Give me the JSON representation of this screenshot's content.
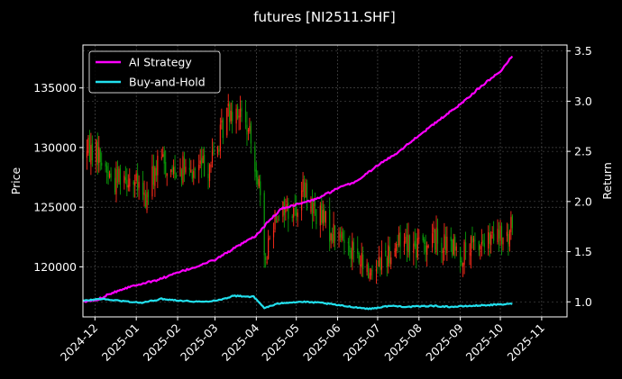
{
  "chart_data": {
    "type": "line",
    "title": "futures [NI2511.SHF]",
    "ylabel": "Price",
    "y2label": "Return",
    "x_tick_labels": [
      "2024-12",
      "2025-01",
      "2025-02",
      "2025-03",
      "2025-04",
      "2025-05",
      "2025-06",
      "2025-07",
      "2025-08",
      "2025-09",
      "2025-10",
      "2025-11"
    ],
    "ylim": [
      115800,
      138600
    ],
    "y2lim": [
      0.85,
      3.56
    ],
    "yticks": [
      120000,
      125000,
      130000,
      135000
    ],
    "y2ticks": [
      1.0,
      1.5,
      2.0,
      2.5,
      3.0,
      3.5
    ],
    "xlim": [
      "2024-11-22",
      "2025-11-20"
    ],
    "grid": true,
    "legend_position": "upper-left",
    "colors": {
      "background": "#000000",
      "up_candle": "#ff2a1a",
      "down_candle": "#0a9a0a",
      "grid": "#5a5a5a"
    },
    "candles": {
      "price_outline": [
        [
          "2024-11-22",
          129500
        ],
        [
          "2024-12-01",
          130000
        ],
        [
          "2024-12-08",
          128500
        ],
        [
          "2024-12-15",
          127000
        ],
        [
          "2024-12-20",
          128000
        ],
        [
          "2024-12-27",
          127500
        ],
        [
          "2025-01-03",
          126500
        ],
        [
          "2025-01-08",
          125500
        ],
        [
          "2025-01-13",
          127500
        ],
        [
          "2025-01-20",
          129000
        ],
        [
          "2025-01-27",
          128000
        ],
        [
          "2025-02-03",
          128500
        ],
        [
          "2025-02-10",
          127500
        ],
        [
          "2025-02-17",
          128500
        ],
        [
          "2025-02-24",
          128500
        ],
        [
          "2025-03-03",
          130000
        ],
        [
          "2025-03-10",
          133000
        ],
        [
          "2025-03-17",
          133500
        ],
        [
          "2025-03-24",
          132000
        ],
        [
          "2025-03-31",
          129000
        ],
        [
          "2025-04-03",
          127000
        ],
        [
          "2025-04-07",
          120000
        ],
        [
          "2025-04-10",
          122000
        ],
        [
          "2025-04-15",
          124500
        ],
        [
          "2025-04-22",
          125000
        ],
        [
          "2025-04-29",
          124500
        ],
        [
          "2025-05-06",
          126500
        ],
        [
          "2025-05-13",
          125000
        ],
        [
          "2025-05-20",
          124000
        ],
        [
          "2025-05-27",
          123000
        ],
        [
          "2025-06-03",
          122500
        ],
        [
          "2025-06-10",
          122000
        ],
        [
          "2025-06-17",
          120500
        ],
        [
          "2025-06-24",
          119500
        ],
        [
          "2025-07-01",
          120500
        ],
        [
          "2025-07-08",
          121000
        ],
        [
          "2025-07-15",
          122000
        ],
        [
          "2025-07-22",
          122500
        ],
        [
          "2025-07-29",
          121500
        ],
        [
          "2025-08-05",
          122000
        ],
        [
          "2025-08-12",
          122500
        ],
        [
          "2025-08-19",
          122000
        ],
        [
          "2025-08-26",
          121500
        ],
        [
          "2025-09-02",
          121000
        ],
        [
          "2025-09-09",
          121500
        ],
        [
          "2025-09-16",
          122000
        ],
        [
          "2025-09-23",
          122000
        ],
        [
          "2025-09-30",
          122500
        ],
        [
          "2025-10-07",
          122000
        ],
        [
          "2025-10-10",
          124000
        ]
      ]
    },
    "series": [
      {
        "name": "AI Strategy",
        "color": "#ff00ff",
        "points": [
          [
            "2024-11-22",
            1.0
          ],
          [
            "2024-12-03",
            1.02
          ],
          [
            "2024-12-10",
            1.07
          ],
          [
            "2024-12-20",
            1.12
          ],
          [
            "2025-01-01",
            1.17
          ],
          [
            "2025-01-15",
            1.21
          ],
          [
            "2025-02-01",
            1.29
          ],
          [
            "2025-02-15",
            1.35
          ],
          [
            "2025-03-01",
            1.42
          ],
          [
            "2025-03-15",
            1.53
          ],
          [
            "2025-04-01",
            1.66
          ],
          [
            "2025-04-10",
            1.8
          ],
          [
            "2025-04-20",
            1.93
          ],
          [
            "2025-05-01",
            1.97
          ],
          [
            "2025-05-15",
            2.02
          ],
          [
            "2025-06-01",
            2.13
          ],
          [
            "2025-06-15",
            2.2
          ],
          [
            "2025-07-01",
            2.36
          ],
          [
            "2025-07-15",
            2.48
          ],
          [
            "2025-08-01",
            2.66
          ],
          [
            "2025-08-15",
            2.8
          ],
          [
            "2025-09-01",
            2.97
          ],
          [
            "2025-09-15",
            3.13
          ],
          [
            "2025-10-01",
            3.3
          ],
          [
            "2025-10-10",
            3.45
          ]
        ]
      },
      {
        "name": "Buy-and-Hold",
        "color": "#22e0ee",
        "points": [
          [
            "2024-11-22",
            1.01
          ],
          [
            "2024-12-05",
            1.03
          ],
          [
            "2024-12-20",
            1.01
          ],
          [
            "2025-01-05",
            0.99
          ],
          [
            "2025-01-20",
            1.03
          ],
          [
            "2025-02-05",
            1.01
          ],
          [
            "2025-02-20",
            1.0
          ],
          [
            "2025-03-05",
            1.02
          ],
          [
            "2025-03-15",
            1.06
          ],
          [
            "2025-03-30",
            1.05
          ],
          [
            "2025-04-07",
            0.94
          ],
          [
            "2025-04-20",
            0.99
          ],
          [
            "2025-05-05",
            1.0
          ],
          [
            "2025-05-20",
            0.99
          ],
          [
            "2025-06-05",
            0.96
          ],
          [
            "2025-06-25",
            0.93
          ],
          [
            "2025-07-10",
            0.96
          ],
          [
            "2025-07-25",
            0.95
          ],
          [
            "2025-08-10",
            0.96
          ],
          [
            "2025-08-25",
            0.95
          ],
          [
            "2025-09-10",
            0.96
          ],
          [
            "2025-09-25",
            0.97
          ],
          [
            "2025-10-10",
            0.98
          ]
        ]
      }
    ]
  }
}
